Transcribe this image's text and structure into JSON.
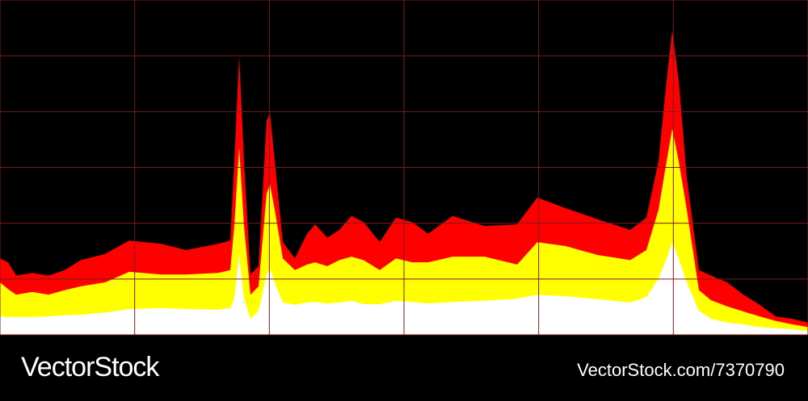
{
  "chart_data": {
    "type": "area",
    "x": [
      0,
      0.6,
      1.2,
      2.4,
      3.6,
      4.8,
      6,
      7.8,
      9.6,
      12,
      13.8,
      16.2,
      17.1,
      17.4,
      17.76,
      18.12,
      18.6,
      19.2,
      19.8,
      20.04,
      20.4,
      21,
      21.9,
      22.8,
      23.4,
      24.3,
      25.2,
      26.1,
      27,
      28.2,
      29.4,
      30.6,
      31.8,
      33.6,
      36,
      38.4,
      39.9,
      42,
      44.4,
      46.8,
      48,
      48.9,
      49.5,
      49.92,
      50.4,
      51,
      51.9,
      52.8,
      54,
      55.2,
      56.4,
      57.6,
      58.8,
      60
    ],
    "series": [
      {
        "color": "#ff0000",
        "values": [
          13.7,
          13.0,
          10.6,
          11.1,
          10.6,
          11.6,
          13.4,
          14.5,
          16.9,
          16.3,
          15.2,
          16.3,
          16.9,
          31.1,
          49.9,
          31.1,
          10.8,
          12.3,
          38.3,
          39.8,
          31.1,
          16.6,
          13.7,
          18.1,
          19.8,
          17.4,
          18.8,
          21.3,
          20.2,
          16.6,
          21.0,
          20.2,
          18.1,
          21.3,
          19.5,
          19.8,
          24.6,
          22.7,
          20.7,
          18.8,
          21.0,
          31.1,
          45.5,
          54.5,
          45.5,
          28.2,
          11.6,
          10.6,
          9.4,
          7.2,
          5.4,
          3.3,
          2.9,
          2.2
        ]
      },
      {
        "color": "#ffff00",
        "values": [
          9.4,
          8.2,
          7.2,
          7.7,
          7.2,
          8.0,
          8.7,
          9.4,
          11.3,
          10.8,
          10.8,
          11.1,
          11.6,
          19.5,
          33.5,
          19.5,
          7.2,
          8.7,
          25.3,
          27.0,
          22.4,
          13.7,
          11.6,
          12.6,
          13.0,
          12.3,
          13.4,
          14.0,
          13.4,
          11.6,
          13.7,
          13.0,
          13.0,
          14.0,
          14.0,
          12.6,
          16.6,
          15.9,
          14.3,
          13.4,
          15.2,
          22.4,
          31.1,
          36.9,
          31.1,
          22.4,
          8.0,
          6.2,
          5.1,
          4.2,
          3.3,
          2.5,
          1.9,
          1.4
        ]
      },
      {
        "color": "#ffffff",
        "values": [
          3.3,
          3.2,
          3.2,
          3.2,
          3.3,
          3.5,
          3.6,
          4.0,
          4.6,
          4.8,
          4.6,
          4.5,
          4.8,
          6.5,
          14.5,
          6.5,
          2.9,
          4.3,
          10.8,
          11.9,
          9.4,
          5.8,
          5.4,
          5.8,
          5.9,
          5.6,
          5.8,
          6.1,
          5.5,
          5.5,
          6.1,
          5.9,
          5.6,
          5.9,
          6.1,
          6.5,
          7.2,
          6.9,
          6.4,
          5.8,
          6.8,
          10.1,
          13.7,
          16.6,
          13.7,
          9.4,
          4.3,
          2.9,
          2.2,
          1.9,
          1.4,
          1.2,
          1.0,
          0.7
        ]
      }
    ],
    "xlim": [
      0,
      60
    ],
    "xticks": [
      0,
      10,
      20,
      30,
      40,
      50,
      60
    ],
    "ylim": [
      0,
      60
    ],
    "yticks": [
      0,
      10,
      20,
      30,
      40,
      50,
      60
    ],
    "grid": true,
    "grid_color": "#7a1c1c",
    "background": "#000000"
  },
  "watermark": {
    "brand": "VectorStock",
    "url": "VectorStock.com/7370790"
  }
}
